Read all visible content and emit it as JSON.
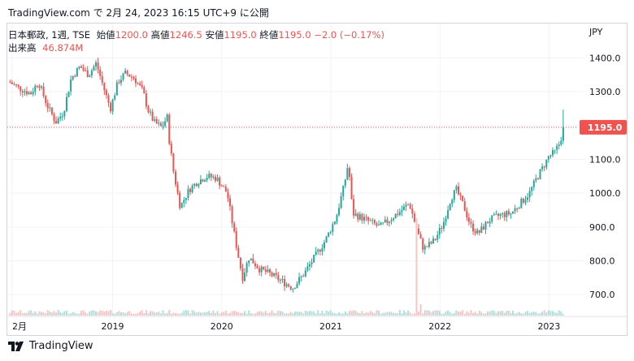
{
  "header": {
    "caption": "TradingView.com で 2月 24, 2023 16:15 UTC+9 に公開"
  },
  "legend": {
    "symbol": "日本郵政, 1週, TSE",
    "open_label": "始値",
    "open": "1200.0",
    "high_label": "高値",
    "high": "1246.5",
    "low_label": "安値",
    "low": "1195.0",
    "close_label": "終値",
    "close": "1195.0",
    "change": "−2.0 (−0.17%)",
    "volume_label": "出来高",
    "volume": "46.874M"
  },
  "footer": {
    "brand": "TradingView"
  },
  "colors": {
    "up": "#26a69a",
    "down": "#ef5350",
    "vol_up": "#b2dfdb",
    "vol_down": "#f8c5c5",
    "grid": "#f0f3fa"
  },
  "chart_data": {
    "type": "candlestick",
    "currency": "JPY",
    "y_ticks": [
      700,
      800,
      900,
      1000,
      1100,
      1200,
      1300,
      1400
    ],
    "ylim": [
      650,
      1430
    ],
    "last_price": 1195.0,
    "last_price_label": "1195.0",
    "x_labels": [
      {
        "label": "2月",
        "t": 2018.08
      },
      {
        "label": "2019",
        "t": 2019.0
      },
      {
        "label": "2020",
        "t": 2020.0
      },
      {
        "label": "2021",
        "t": 2021.0
      },
      {
        "label": "2022",
        "t": 2022.0
      },
      {
        "label": "2023",
        "t": 2023.0
      }
    ],
    "xlim": [
      2018.05,
      2023.25
    ],
    "trend": [
      [
        2018.05,
        1330
      ],
      [
        2018.15,
        1310
      ],
      [
        2018.25,
        1295
      ],
      [
        2018.32,
        1330
      ],
      [
        2018.4,
        1260
      ],
      [
        2018.48,
        1210
      ],
      [
        2018.55,
        1240
      ],
      [
        2018.62,
        1340
      ],
      [
        2018.7,
        1375
      ],
      [
        2018.78,
        1350
      ],
      [
        2018.85,
        1385
      ],
      [
        2018.92,
        1310
      ],
      [
        2018.98,
        1250
      ],
      [
        2019.05,
        1330
      ],
      [
        2019.12,
        1355
      ],
      [
        2019.2,
        1340
      ],
      [
        2019.28,
        1300
      ],
      [
        2019.32,
        1250
      ],
      [
        2019.38,
        1210
      ],
      [
        2019.45,
        1195
      ],
      [
        2019.5,
        1225
      ],
      [
        2019.52,
        1155
      ],
      [
        2019.56,
        1060
      ],
      [
        2019.62,
        960
      ],
      [
        2019.7,
        1010
      ],
      [
        2019.78,
        1035
      ],
      [
        2019.86,
        1050
      ],
      [
        2019.95,
        1045
      ],
      [
        2020.05,
        1000
      ],
      [
        2020.12,
        870
      ],
      [
        2020.19,
        750
      ],
      [
        2020.25,
        810
      ],
      [
        2020.35,
        775
      ],
      [
        2020.45,
        760
      ],
      [
        2020.55,
        740
      ],
      [
        2020.65,
        720
      ],
      [
        2020.75,
        760
      ],
      [
        2020.85,
        810
      ],
      [
        2020.95,
        860
      ],
      [
        2021.05,
        930
      ],
      [
        2021.12,
        1020
      ],
      [
        2021.16,
        1090
      ],
      [
        2021.2,
        940
      ],
      [
        2021.3,
        925
      ],
      [
        2021.45,
        900
      ],
      [
        2021.55,
        925
      ],
      [
        2021.65,
        950
      ],
      [
        2021.72,
        970
      ],
      [
        2021.8,
        880
      ],
      [
        2021.85,
        835
      ],
      [
        2021.95,
        860
      ],
      [
        2022.03,
        910
      ],
      [
        2022.1,
        985
      ],
      [
        2022.15,
        1010
      ],
      [
        2022.22,
        960
      ],
      [
        2022.28,
        905
      ],
      [
        2022.35,
        880
      ],
      [
        2022.45,
        920
      ],
      [
        2022.55,
        935
      ],
      [
        2022.65,
        940
      ],
      [
        2022.75,
        975
      ],
      [
        2022.82,
        1000
      ],
      [
        2022.88,
        1040
      ],
      [
        2022.95,
        1080
      ],
      [
        2023.0,
        1110
      ],
      [
        2023.05,
        1120
      ],
      [
        2023.1,
        1150
      ],
      [
        2023.13,
        1190
      ]
    ]
  }
}
